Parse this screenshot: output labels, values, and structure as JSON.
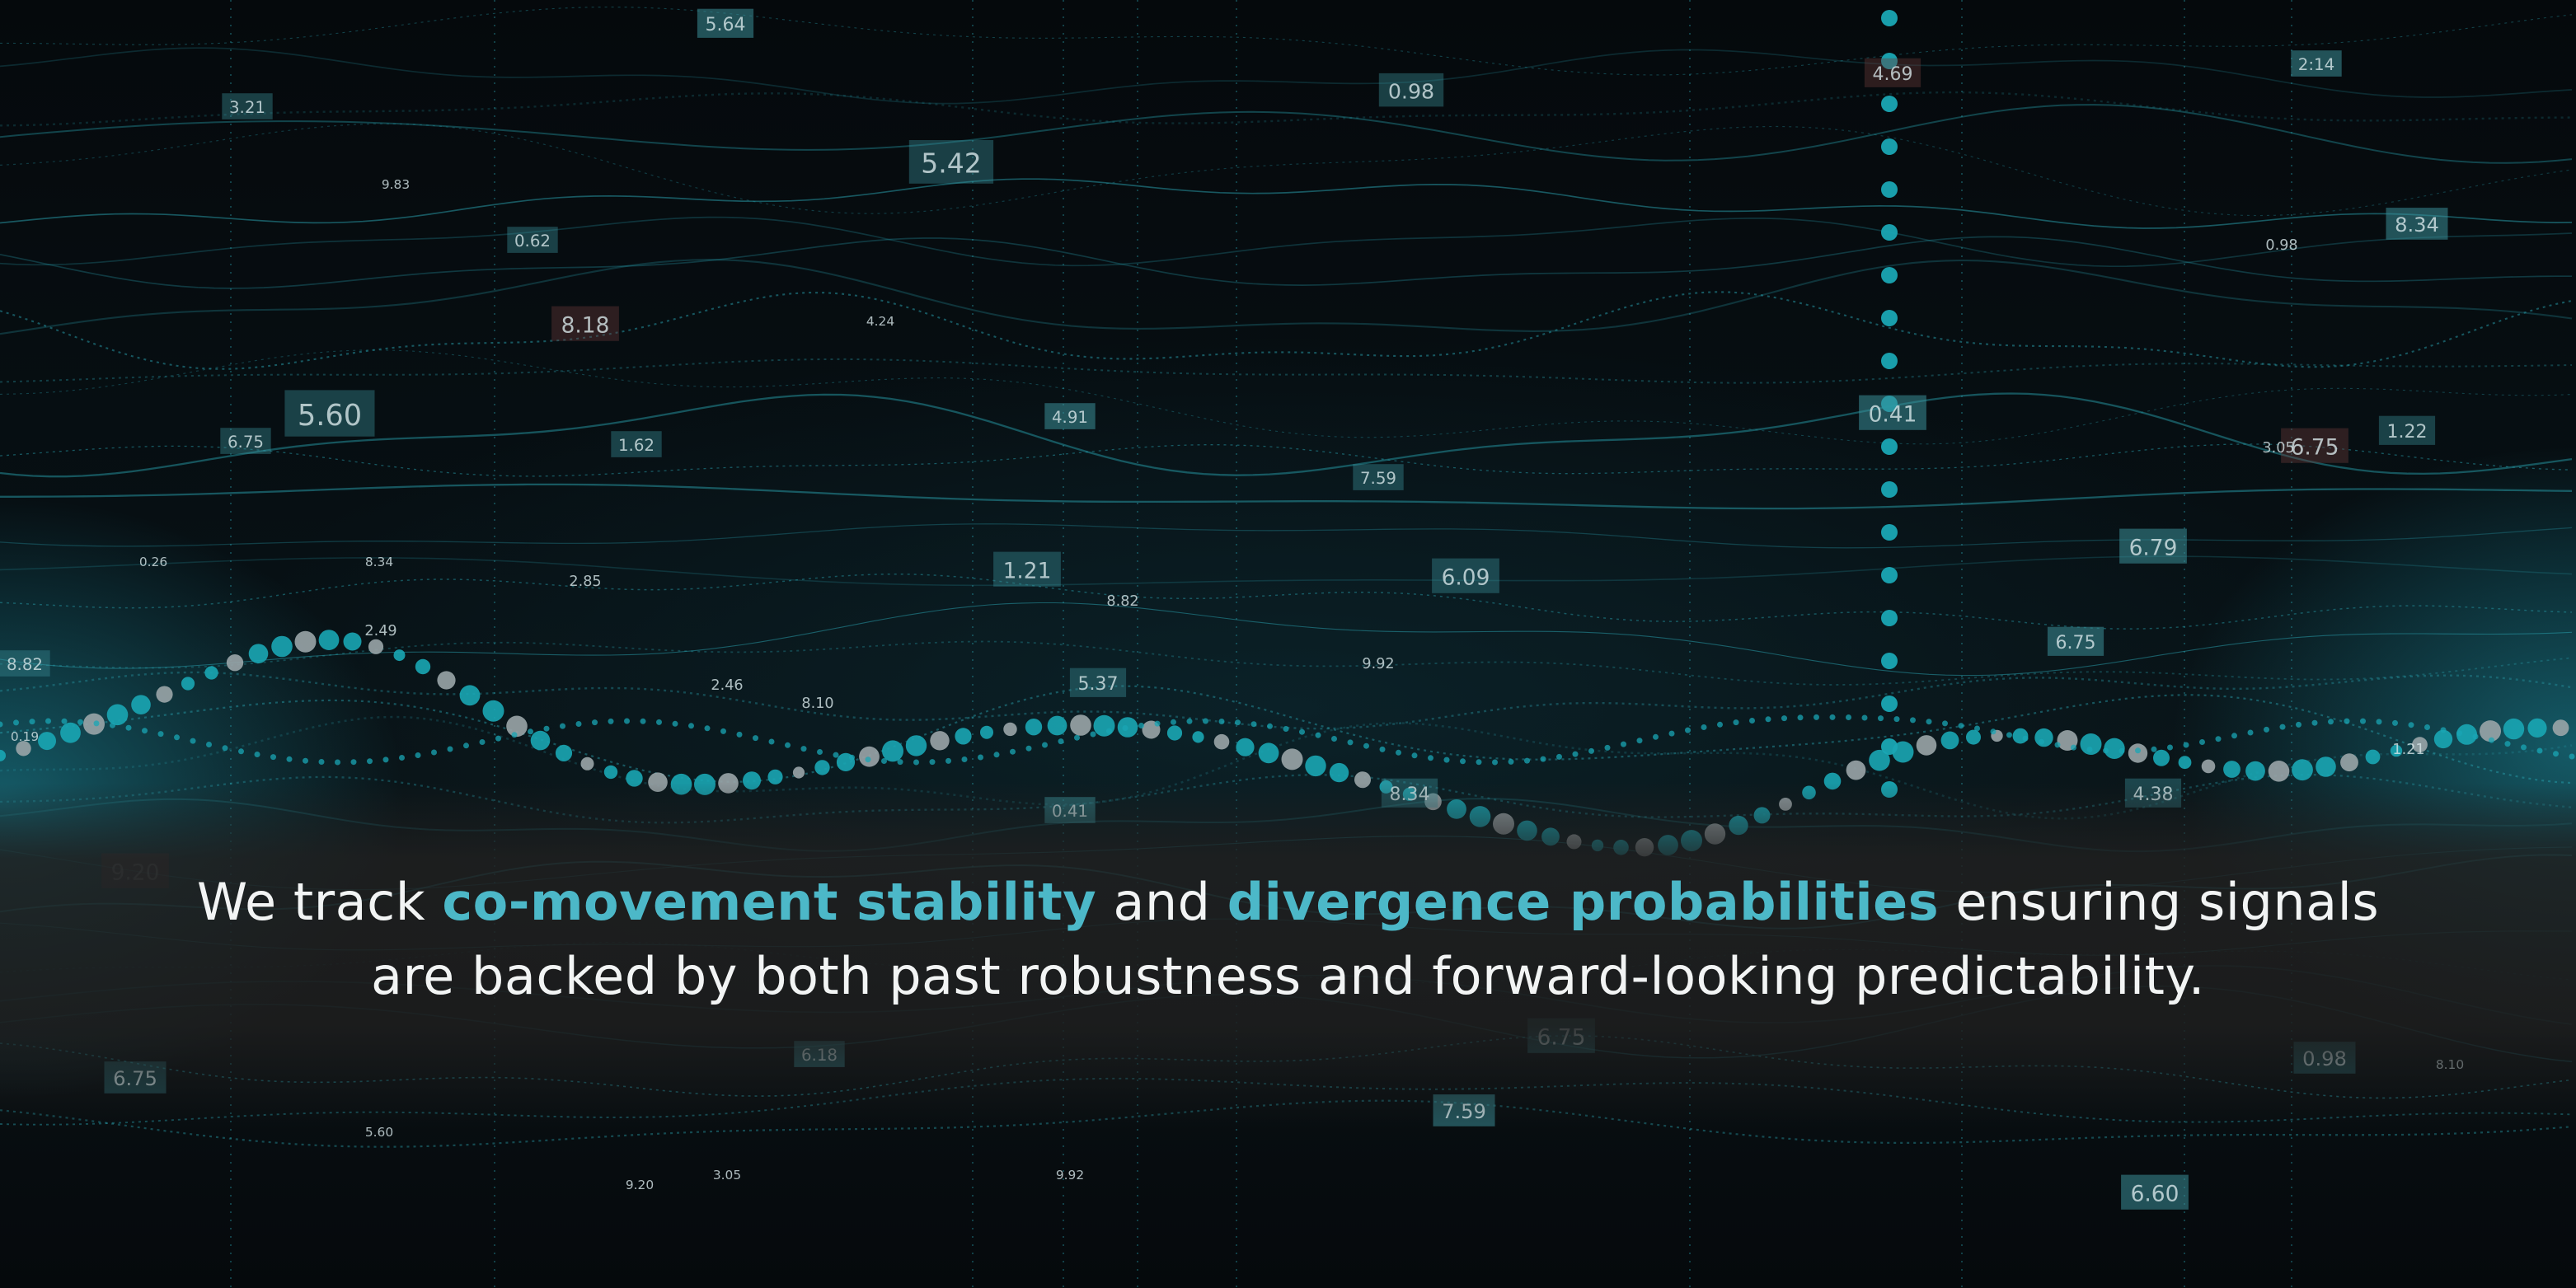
{
  "tagline": {
    "part1": "We track ",
    "highlight1": "co-movement stability",
    "part2": " and ",
    "highlight2": "divergence probabilities",
    "part3": " ensuring signals are backed by both past robustness and forward-looking predictability."
  },
  "colors": {
    "background": "#05090c",
    "accent": "#4cb8c8",
    "text": "#f2f4f4",
    "dot_teal": "#1aa6b4",
    "dot_grey": "#9aa5a8"
  },
  "floating_values": [
    "5.64",
    "0.98",
    "3.21",
    "4.69",
    "2:14",
    "5.42",
    "9.83",
    "0.62",
    "8.34",
    "0.98",
    "8.18",
    "4.24",
    "4.91",
    "5.60",
    "6.75",
    "1.62",
    "0.41",
    "6.75",
    "1.22",
    "7.59",
    "6.79",
    "1.21",
    "6.09",
    "0.26",
    "8.34",
    "2.85",
    "8.82",
    "0.19",
    "6.75",
    "5.37",
    "9.92",
    "2.46",
    "8.10",
    "2.49",
    "8.82",
    "8.34",
    "0.41",
    "4.38",
    "9.20",
    "6.75",
    "6.18",
    "6.75",
    "0.98",
    "5.60",
    "7.59",
    "9.20",
    "3.05",
    "9.92",
    "6.60",
    "1.21",
    "3.05",
    "8.10"
  ]
}
